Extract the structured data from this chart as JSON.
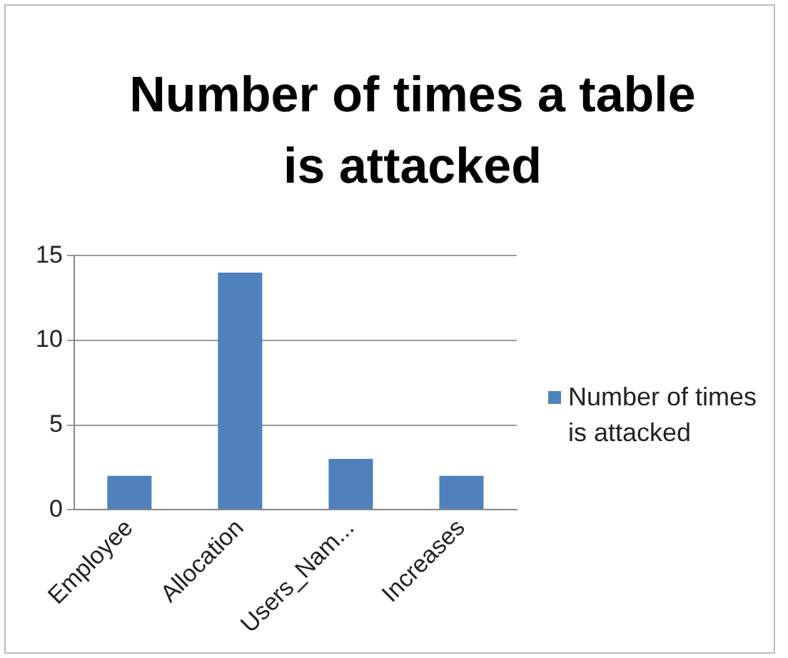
{
  "chart_data": {
    "type": "bar",
    "title": "Number of times a table is attacked",
    "categories": [
      "Employee",
      "Allocation",
      "Users_Nam...",
      "Increases"
    ],
    "series": [
      {
        "name": "Number of times is attacked",
        "color": "#4f81bd",
        "values": [
          2,
          14,
          3,
          2
        ]
      }
    ],
    "ylim": [
      0,
      15
    ],
    "yticks": [
      0,
      5,
      10,
      15
    ],
    "grid": "y",
    "legend": "right"
  }
}
